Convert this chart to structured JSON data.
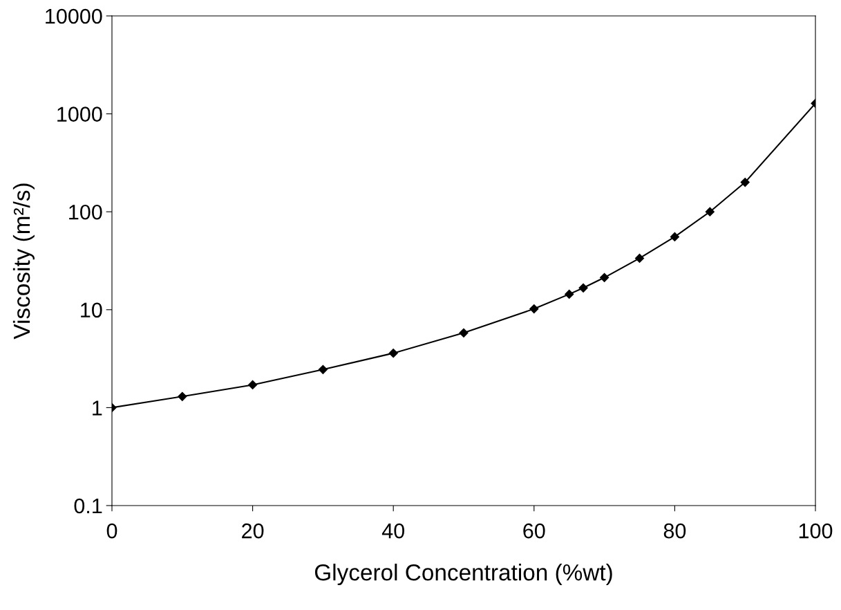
{
  "chart_data": {
    "type": "line",
    "xlabel": "Glycerol Concentration (%wt)",
    "ylabel": "Viscosity (m²/s)",
    "x": [
      0,
      10,
      20,
      30,
      40,
      50,
      60,
      65,
      67,
      70,
      75,
      80,
      85,
      90,
      100
    ],
    "series": [
      {
        "color": "#000000",
        "values": [
          1,
          1.3,
          1.71,
          2.45,
          3.6,
          5.8,
          10.2,
          14.4,
          16.7,
          21.3,
          33.5,
          55.5,
          100,
          200,
          1280
        ]
      }
    ],
    "log": "y",
    "xlim": [
      0,
      100
    ],
    "xticks": [
      0,
      20,
      40,
      60,
      80,
      100
    ],
    "ylim": [
      0.1,
      10000
    ],
    "yticks": [
      0.1,
      1,
      10,
      100,
      1000,
      10000
    ],
    "grid": false,
    "marker": "diamond",
    "line_style": "solid",
    "legend": false
  }
}
